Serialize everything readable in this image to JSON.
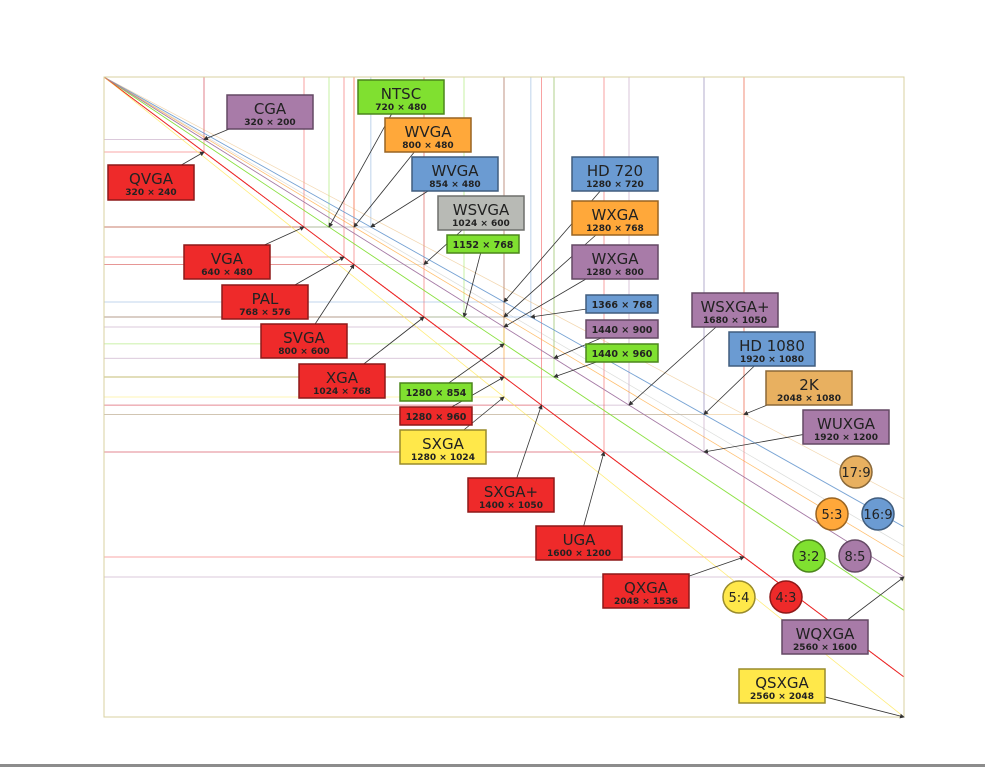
{
  "colors": {
    "4:3": "#ee2a2a",
    "8:5": "#a87ba8",
    "3:2": "#80e030",
    "5:3": "#ffa83a",
    "16:9": "#6b9bd2",
    "5:4": "#ffe84a",
    "17:9": "#e8b060",
    "other": "#b8bab5"
  },
  "resolutions": [
    {
      "name": "CGA",
      "size": "320 × 200",
      "w": 320,
      "h": 200,
      "aspect": "8:5"
    },
    {
      "name": "QVGA",
      "size": "320 × 240",
      "w": 320,
      "h": 240,
      "aspect": "4:3"
    },
    {
      "name": "NTSC",
      "size": "720 × 480",
      "w": 720,
      "h": 480,
      "aspect": "3:2"
    },
    {
      "name": "WVGA",
      "size": "800 × 480",
      "w": 800,
      "h": 480,
      "aspect": "5:3"
    },
    {
      "name": "WVGA",
      "size": "854 × 480",
      "w": 854,
      "h": 480,
      "aspect": "16:9"
    },
    {
      "name": "WSVGA",
      "size": "1024 × 600",
      "w": 1024,
      "h": 600,
      "aspect": "other"
    },
    {
      "name": "",
      "size": "1152 × 768",
      "w": 1152,
      "h": 768,
      "aspect": "3:2"
    },
    {
      "name": "VGA",
      "size": "640 × 480",
      "w": 640,
      "h": 480,
      "aspect": "4:3"
    },
    {
      "name": "PAL",
      "size": "768 × 576",
      "w": 768,
      "h": 576,
      "aspect": "4:3"
    },
    {
      "name": "SVGA",
      "size": "800 × 600",
      "w": 800,
      "h": 600,
      "aspect": "4:3"
    },
    {
      "name": "XGA",
      "size": "1024 × 768",
      "w": 1024,
      "h": 768,
      "aspect": "4:3"
    },
    {
      "name": "",
      "size": "1280 × 854",
      "w": 1280,
      "h": 854,
      "aspect": "3:2"
    },
    {
      "name": "",
      "size": "1280 × 960",
      "w": 1280,
      "h": 960,
      "aspect": "4:3"
    },
    {
      "name": "SXGA",
      "size": "1280 × 1024",
      "w": 1280,
      "h": 1024,
      "aspect": "5:4"
    },
    {
      "name": "HD 720",
      "size": "1280 × 720",
      "w": 1280,
      "h": 720,
      "aspect": "16:9"
    },
    {
      "name": "WXGA",
      "size": "1280 × 768",
      "w": 1280,
      "h": 768,
      "aspect": "5:3"
    },
    {
      "name": "WXGA",
      "size": "1280 × 800",
      "w": 1280,
      "h": 800,
      "aspect": "8:5"
    },
    {
      "name": "",
      "size": "1366 × 768",
      "w": 1366,
      "h": 768,
      "aspect": "16:9"
    },
    {
      "name": "",
      "size": "1440 × 900",
      "w": 1440,
      "h": 900,
      "aspect": "8:5"
    },
    {
      "name": "",
      "size": "1440 × 960",
      "w": 1440,
      "h": 960,
      "aspect": "3:2"
    },
    {
      "name": "WSXGA+",
      "size": "1680 × 1050",
      "w": 1680,
      "h": 1050,
      "aspect": "8:5"
    },
    {
      "name": "HD 1080",
      "size": "1920 × 1080",
      "w": 1920,
      "h": 1080,
      "aspect": "16:9"
    },
    {
      "name": "2K",
      "size": "2048 × 1080",
      "w": 2048,
      "h": 1080,
      "aspect": "17:9"
    },
    {
      "name": "WUXGA",
      "size": "1920 × 1200",
      "w": 1920,
      "h": 1200,
      "aspect": "8:5"
    },
    {
      "name": "SXGA+",
      "size": "1400 × 1050",
      "w": 1400,
      "h": 1050,
      "aspect": "4:3"
    },
    {
      "name": "UGA",
      "size": "1600 × 1200",
      "w": 1600,
      "h": 1200,
      "aspect": "4:3"
    },
    {
      "name": "QXGA",
      "size": "2048 × 1536",
      "w": 2048,
      "h": 1536,
      "aspect": "4:3"
    },
    {
      "name": "WQXGA",
      "size": "2560 × 1600",
      "w": 2560,
      "h": 1600,
      "aspect": "8:5"
    },
    {
      "name": "QSXGA",
      "size": "2560 × 2048",
      "w": 2560,
      "h": 2048,
      "aspect": "5:4"
    }
  ],
  "aspect_legend": [
    {
      "label": "17:9",
      "aspect": "17:9"
    },
    {
      "label": "5:3",
      "aspect": "5:3"
    },
    {
      "label": "16:9",
      "aspect": "16:9"
    },
    {
      "label": "3:2",
      "aspect": "3:2"
    },
    {
      "label": "8:5",
      "aspect": "8:5"
    },
    {
      "label": "5:4",
      "aspect": "5:4"
    },
    {
      "label": "4:3",
      "aspect": "4:3"
    }
  ]
}
